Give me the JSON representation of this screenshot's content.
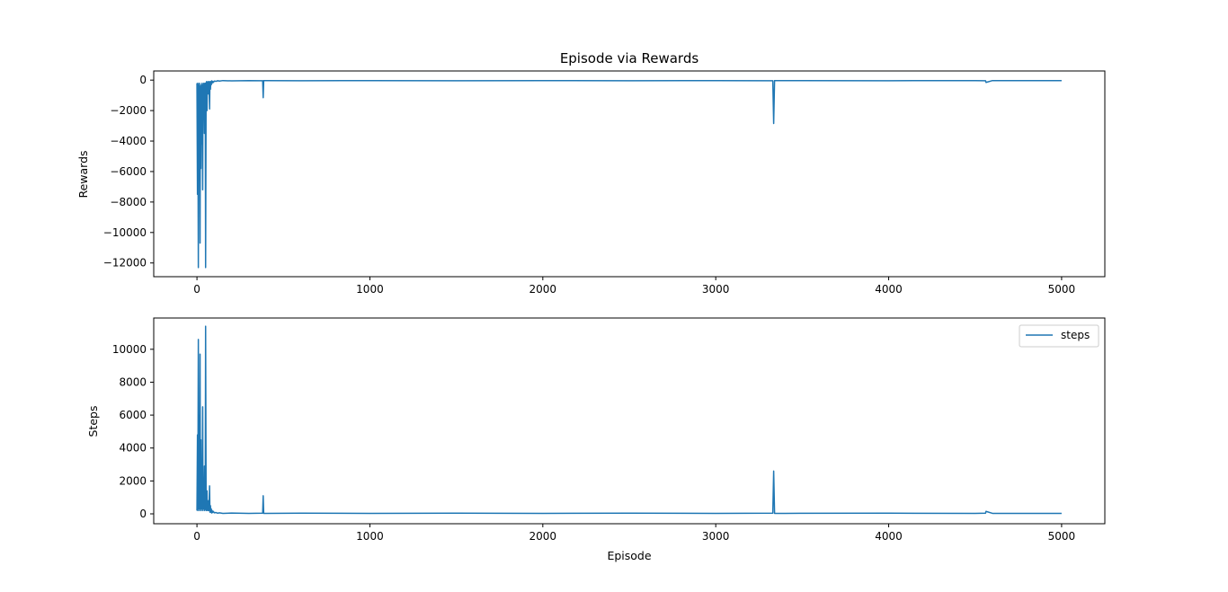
{
  "chart_data": [
    {
      "type": "line",
      "title": "Episode via Rewards",
      "xlabel": "",
      "ylabel": "Rewards",
      "xlim": [
        -250,
        5250
      ],
      "ylim": [
        -12900,
        600
      ],
      "xticks": [
        0,
        1000,
        2000,
        3000,
        4000,
        5000
      ],
      "yticks": [
        0,
        -2000,
        -4000,
        -6000,
        -8000,
        -10000,
        -12000
      ],
      "xtick_labels": [
        "0",
        "1000",
        "2000",
        "3000",
        "4000",
        "5000"
      ],
      "ytick_labels": [
        "0",
        "−2000",
        "−4000",
        "−6000",
        "−8000",
        "−10000",
        "−12000"
      ],
      "grid": false,
      "legend": null,
      "color": "#1f77b4",
      "series": [
        {
          "x": [
            0,
            3,
            5,
            8,
            10,
            12,
            15,
            18,
            20,
            23,
            25,
            28,
            30,
            33,
            35,
            38,
            40,
            43,
            45,
            48,
            50,
            53,
            55,
            58,
            60,
            63,
            65,
            68,
            70,
            73,
            75,
            78,
            80,
            83,
            85,
            88,
            90,
            95,
            100,
            110,
            120,
            130,
            150,
            200,
            300,
            380,
            383,
            386,
            400,
            600,
            1000,
            1500,
            2000,
            2500,
            3000,
            3330,
            3335,
            3340,
            3400,
            4000,
            4500,
            4560,
            4563,
            4600,
            5000
          ],
          "values": [
            -200,
            -7500,
            -200,
            -12300,
            -300,
            -6500,
            -200,
            -10700,
            -400,
            -5800,
            -300,
            -4200,
            -200,
            -7200,
            -300,
            -2500,
            -200,
            -3500,
            -300,
            -200,
            -12300,
            -400,
            -100,
            -2000,
            -300,
            -100,
            -900,
            -100,
            -200,
            -1900,
            -100,
            -600,
            -100,
            -300,
            -50,
            -200,
            -80,
            -150,
            -60,
            -80,
            -40,
            -60,
            -30,
            -50,
            -30,
            -40,
            -1150,
            -30,
            -30,
            -40,
            -30,
            -40,
            -30,
            -40,
            -30,
            -40,
            -2850,
            -30,
            -30,
            -40,
            -30,
            -40,
            -150,
            -30,
            -30
          ]
        }
      ]
    },
    {
      "type": "line",
      "title": "",
      "xlabel": "Episode",
      "ylabel": "Steps",
      "xlim": [
        -250,
        5250
      ],
      "ylim": [
        -600,
        11900
      ],
      "xticks": [
        0,
        1000,
        2000,
        3000,
        4000,
        5000
      ],
      "yticks": [
        0,
        2000,
        4000,
        6000,
        8000,
        10000
      ],
      "xtick_labels": [
        "0",
        "1000",
        "2000",
        "3000",
        "4000",
        "5000"
      ],
      "ytick_labels": [
        "0",
        "2000",
        "4000",
        "6000",
        "8000",
        "10000"
      ],
      "grid": false,
      "legend": "top-right",
      "color": "#1f77b4",
      "series": [
        {
          "name": "steps",
          "x": [
            0,
            3,
            5,
            8,
            10,
            12,
            15,
            18,
            20,
            23,
            25,
            28,
            30,
            33,
            35,
            38,
            40,
            43,
            45,
            48,
            50,
            53,
            55,
            58,
            60,
            63,
            65,
            68,
            70,
            73,
            75,
            78,
            80,
            83,
            85,
            88,
            90,
            95,
            100,
            110,
            120,
            130,
            150,
            200,
            300,
            380,
            383,
            386,
            400,
            600,
            1000,
            1500,
            2000,
            2500,
            3000,
            3330,
            3335,
            3340,
            3400,
            4000,
            4500,
            4560,
            4563,
            4600,
            5000
          ],
          "values": [
            200,
            4800,
            200,
            10600,
            300,
            6000,
            200,
            9700,
            300,
            4500,
            200,
            3200,
            300,
            6500,
            200,
            2000,
            300,
            2900,
            200,
            300,
            11400,
            400,
            200,
            1400,
            300,
            200,
            800,
            200,
            300,
            1700,
            100,
            500,
            100,
            300,
            50,
            200,
            80,
            150,
            60,
            80,
            40,
            60,
            30,
            50,
            30,
            40,
            1100,
            30,
            30,
            40,
            30,
            40,
            30,
            40,
            30,
            40,
            2600,
            30,
            30,
            40,
            30,
            40,
            150,
            30,
            30
          ]
        }
      ]
    }
  ]
}
